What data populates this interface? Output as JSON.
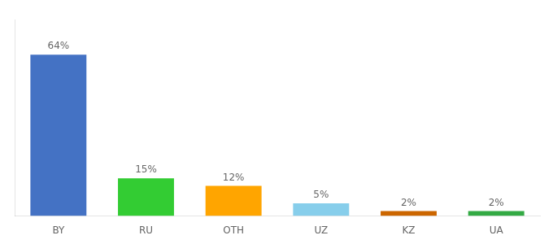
{
  "chart_data": {
    "type": "bar",
    "categories": [
      "BY",
      "RU",
      "OTH",
      "UZ",
      "KZ",
      "UA"
    ],
    "values": [
      64,
      15,
      12,
      5,
      2,
      2
    ],
    "value_labels": [
      "64%",
      "15%",
      "12%",
      "5%",
      "2%",
      "2%"
    ],
    "colors": [
      "#4472C4",
      "#33CC33",
      "#FFA500",
      "#87CEEB",
      "#CC6600",
      "#33AA44"
    ],
    "ylim": [
      0,
      78
    ],
    "grid": false,
    "data_labels": true,
    "tick_labels": "x"
  }
}
